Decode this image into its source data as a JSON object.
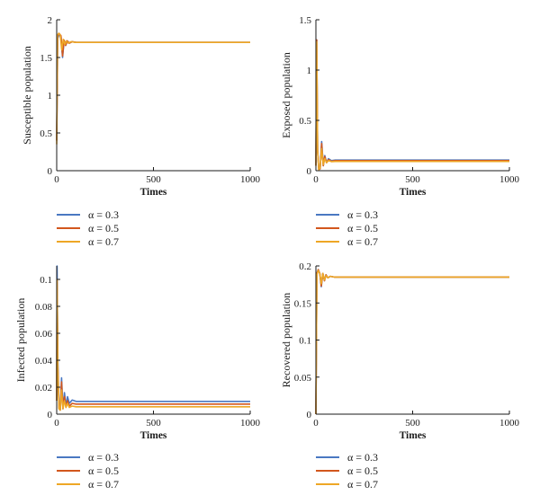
{
  "legend": [
    {
      "label": "α = 0.3",
      "color": "#4a78c2"
    },
    {
      "label": "α = 0.5",
      "color": "#d2571d"
    },
    {
      "label": "α = 0.7",
      "color": "#eea726"
    }
  ],
  "chart_data": [
    {
      "type": "line",
      "xlabel": "Times",
      "ylabel": "Susceptible population",
      "xlim": [
        0,
        1000
      ],
      "ylim": [
        0,
        2
      ],
      "xticks": [
        0,
        500,
        1000
      ],
      "yticks": [
        0,
        0.5,
        1,
        1.5,
        2
      ],
      "ytick_labels": [
        "0",
        "0.5",
        "1",
        "1.5",
        "2"
      ],
      "series": [
        {
          "name": "α = 0.3",
          "x": [
            0,
            5,
            12,
            22,
            30,
            38,
            46,
            55,
            65,
            80,
            100,
            1000
          ],
          "y": [
            0.4,
            1.75,
            1.8,
            1.78,
            1.5,
            1.72,
            1.66,
            1.72,
            1.69,
            1.71,
            1.7,
            1.7
          ]
        },
        {
          "name": "α = 0.5",
          "x": [
            0,
            5,
            12,
            22,
            30,
            38,
            46,
            55,
            65,
            80,
            100,
            1000
          ],
          "y": [
            0.4,
            1.78,
            1.82,
            1.79,
            1.52,
            1.73,
            1.66,
            1.72,
            1.69,
            1.71,
            1.7,
            1.7
          ]
        },
        {
          "name": "α = 0.7",
          "x": [
            0,
            4,
            10,
            18,
            26,
            34,
            42,
            50,
            60,
            75,
            95,
            1000
          ],
          "y": [
            0.35,
            1.8,
            1.82,
            1.8,
            1.6,
            1.74,
            1.67,
            1.72,
            1.69,
            1.71,
            1.7,
            1.7
          ]
        }
      ]
    },
    {
      "type": "line",
      "xlabel": "Times",
      "ylabel": "Exposed population",
      "xlim": [
        0,
        1000
      ],
      "ylim": [
        0,
        1.5
      ],
      "xticks": [
        0,
        500,
        1000
      ],
      "yticks": [
        0,
        0.5,
        1,
        1.5
      ],
      "ytick_labels": [
        "0",
        "0.5",
        "1",
        "1.5"
      ],
      "series": [
        {
          "name": "α = 0.3",
          "x": [
            0,
            4,
            9,
            15,
            22,
            30,
            38,
            46,
            55,
            65,
            80,
            100,
            1000
          ],
          "y": [
            0.05,
            1.3,
            0.2,
            0.01,
            0.02,
            0.29,
            0.05,
            0.15,
            0.08,
            0.12,
            0.1,
            0.105,
            0.105
          ]
        },
        {
          "name": "α = 0.5",
          "x": [
            0,
            4,
            9,
            15,
            22,
            30,
            38,
            46,
            55,
            65,
            80,
            100,
            1000
          ],
          "y": [
            0.05,
            1.3,
            0.2,
            0.01,
            0.02,
            0.27,
            0.05,
            0.14,
            0.08,
            0.11,
            0.095,
            0.1,
            0.1
          ]
        },
        {
          "name": "α = 0.7",
          "x": [
            0,
            4,
            9,
            15,
            22,
            30,
            38,
            46,
            55,
            65,
            80,
            100,
            1000
          ],
          "y": [
            0.05,
            1.28,
            0.2,
            0.01,
            0.03,
            0.22,
            0.06,
            0.12,
            0.08,
            0.1,
            0.09,
            0.092,
            0.092
          ]
        }
      ]
    },
    {
      "type": "line",
      "xlabel": "Times",
      "ylabel": "Infected population",
      "xlim": [
        0,
        1000
      ],
      "ylim": [
        0,
        0.11
      ],
      "xticks": [
        0,
        500,
        1000
      ],
      "yticks": [
        0,
        0.02,
        0.04,
        0.06,
        0.08,
        0.1
      ],
      "ytick_labels": [
        "0",
        "0.02",
        "0.04",
        "0.06",
        "0.08",
        "0.1"
      ],
      "series": [
        {
          "name": "α = 0.3",
          "x": [
            0,
            2,
            6,
            12,
            18,
            25,
            32,
            40,
            48,
            56,
            65,
            80,
            100,
            1000
          ],
          "y": [
            0.01,
            0.11,
            0.04,
            0.005,
            0.003,
            0.027,
            0.004,
            0.016,
            0.006,
            0.013,
            0.008,
            0.0105,
            0.0095,
            0.0095
          ]
        },
        {
          "name": "α = 0.5",
          "x": [
            0,
            2,
            6,
            12,
            18,
            25,
            32,
            40,
            48,
            56,
            65,
            80,
            100,
            1000
          ],
          "y": [
            0.01,
            0.1,
            0.035,
            0.004,
            0.003,
            0.024,
            0.004,
            0.013,
            0.005,
            0.01,
            0.006,
            0.008,
            0.0075,
            0.0075
          ]
        },
        {
          "name": "α = 0.7",
          "x": [
            0,
            2,
            6,
            12,
            18,
            25,
            32,
            40,
            48,
            56,
            65,
            80,
            100,
            1000
          ],
          "y": [
            0.01,
            0.1,
            0.03,
            0.004,
            0.003,
            0.018,
            0.004,
            0.01,
            0.005,
            0.008,
            0.005,
            0.006,
            0.0055,
            0.0055
          ]
        }
      ]
    },
    {
      "type": "line",
      "xlabel": "Times",
      "ylabel": "Recovered population",
      "xlim": [
        0,
        1000
      ],
      "ylim": [
        0,
        0.2
      ],
      "xticks": [
        0,
        500,
        1000
      ],
      "yticks": [
        0,
        0.05,
        0.1,
        0.15,
        0.2
      ],
      "ytick_labels": [
        "0",
        "0.05",
        "0.1",
        "0.15",
        "0.2"
      ],
      "series": [
        {
          "name": "α = 0.3",
          "x": [
            0,
            5,
            12,
            20,
            28,
            36,
            44,
            52,
            62,
            75,
            95,
            1000
          ],
          "y": [
            0,
            0.19,
            0.195,
            0.19,
            0.172,
            0.19,
            0.18,
            0.188,
            0.184,
            0.186,
            0.185,
            0.185
          ]
        },
        {
          "name": "α = 0.5",
          "x": [
            0,
            5,
            12,
            20,
            28,
            36,
            44,
            52,
            62,
            75,
            95,
            1000
          ],
          "y": [
            0,
            0.19,
            0.195,
            0.19,
            0.173,
            0.19,
            0.18,
            0.188,
            0.184,
            0.186,
            0.185,
            0.185
          ]
        },
        {
          "name": "α = 0.7",
          "x": [
            0,
            5,
            12,
            20,
            28,
            36,
            44,
            52,
            62,
            75,
            95,
            1000
          ],
          "y": [
            0,
            0.188,
            0.194,
            0.19,
            0.176,
            0.19,
            0.181,
            0.187,
            0.184,
            0.186,
            0.185,
            0.185
          ]
        }
      ]
    }
  ]
}
